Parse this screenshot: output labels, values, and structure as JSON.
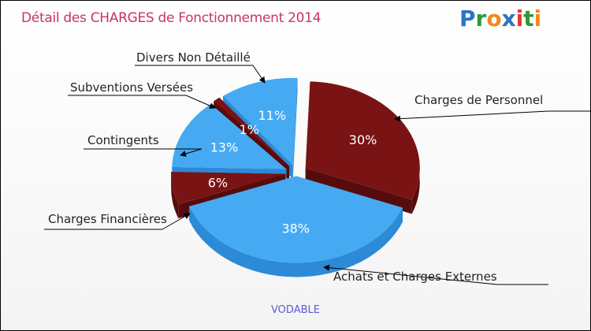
{
  "title": "Détail des CHARGES de Fonctionnement 2014",
  "logo": "Proxiti",
  "footer": "VODABLE",
  "colors": {
    "red": "#7a1414",
    "red_side": "#560c0c",
    "blue": "#45aaf2",
    "blue_side": "#2c8ad6"
  },
  "chart_data": {
    "type": "pie",
    "title": "Détail des CHARGES de Fonctionnement 2014",
    "slices": [
      {
        "label": "Charges de Personnel",
        "value": 30,
        "pct": "30%",
        "color": "red"
      },
      {
        "label": "Achats et Charges Externes",
        "value": 38,
        "pct": "38%",
        "color": "blue"
      },
      {
        "label": "Charges Financières",
        "value": 6,
        "pct": "6%",
        "color": "red"
      },
      {
        "label": "Contingents",
        "value": 13,
        "pct": "13%",
        "color": "blue"
      },
      {
        "label": "Subventions Versées",
        "value": 1,
        "pct": "1%",
        "color": "red"
      },
      {
        "label": "Divers Non Détaillé",
        "value": 11,
        "pct": "11%",
        "color": "blue"
      }
    ]
  }
}
